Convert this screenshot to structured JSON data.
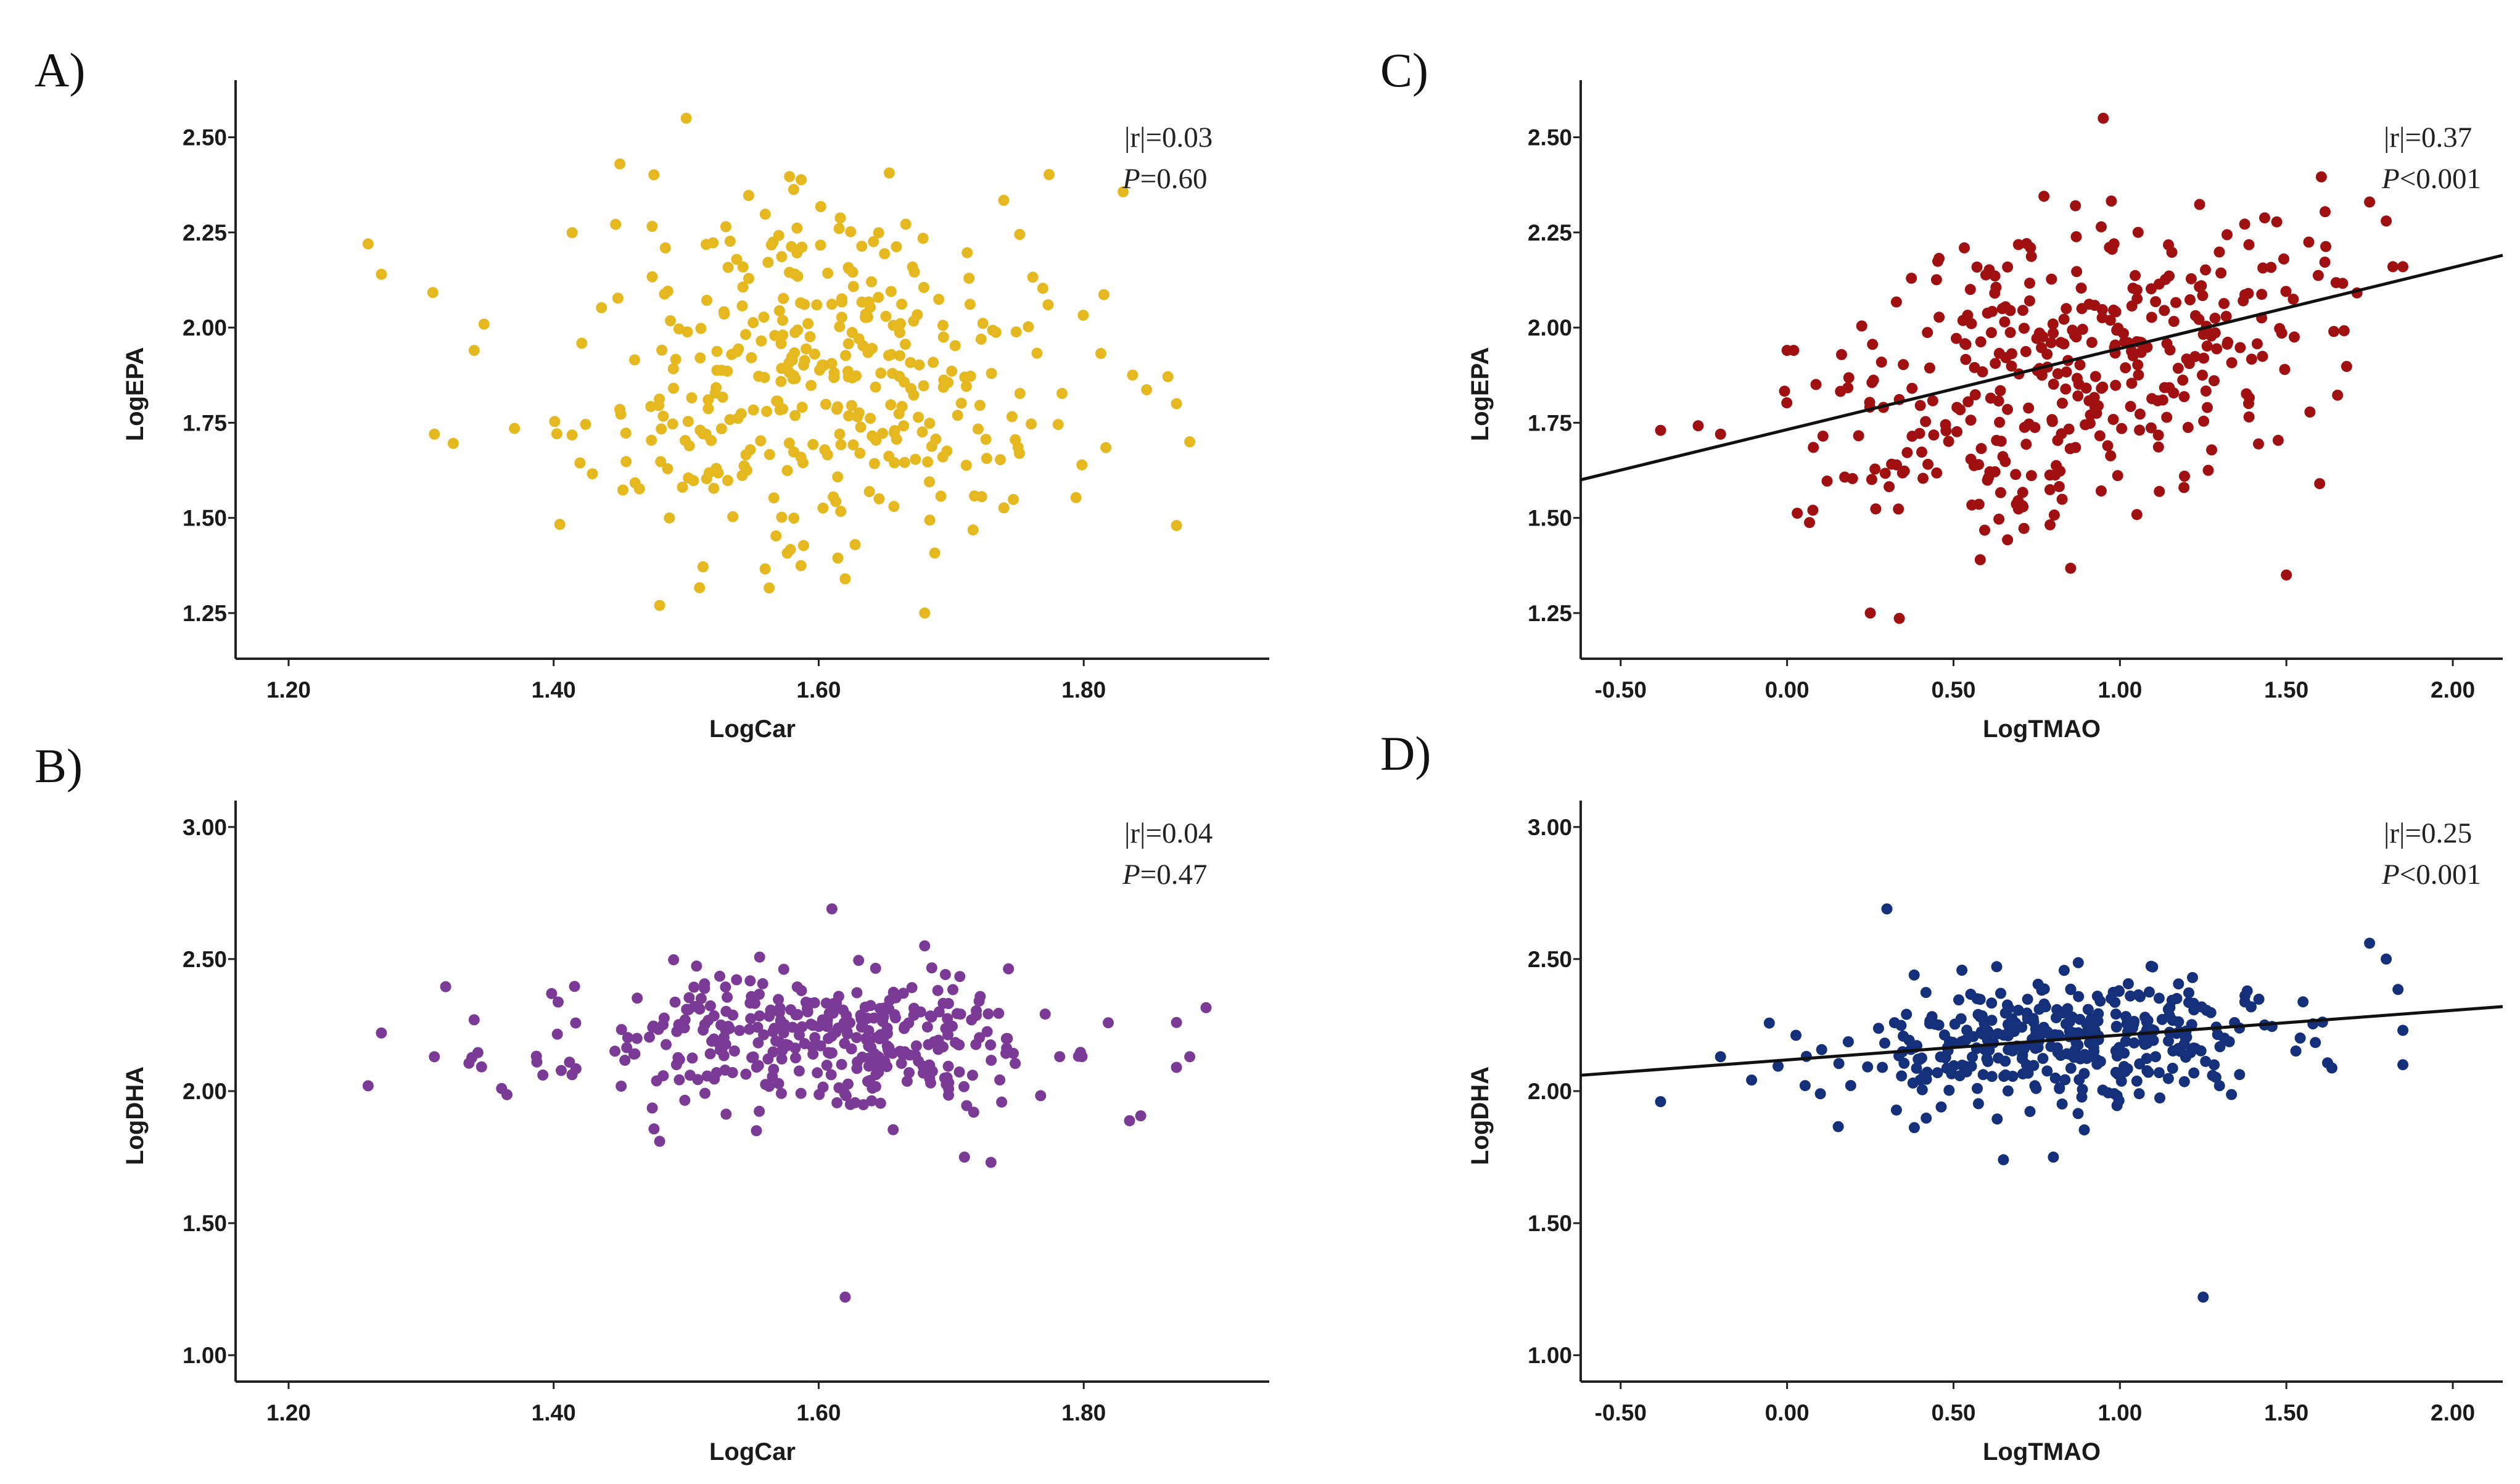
{
  "chart_data": [
    {
      "panel": "A)",
      "type": "scatter",
      "xlabel": "LogCar",
      "ylabel": "LogEPA",
      "xlim": [
        1.16,
        1.94
      ],
      "ylim": [
        1.13,
        2.65
      ],
      "xticks": [
        1.2,
        1.4,
        1.6,
        1.8
      ],
      "xtick_labels": [
        "1.20",
        "1.40",
        "1.60",
        "1.80"
      ],
      "yticks": [
        1.25,
        1.5,
        1.75,
        2.0,
        2.25,
        2.5
      ],
      "ytick_labels": [
        "1.25",
        "1.50",
        "1.75",
        "2.00",
        "2.25",
        "2.50"
      ],
      "stat_r": "|r|=0.03",
      "stat_p_italic": "P",
      "stat_p_value": "=0.60",
      "color": "#E6B820",
      "fit_line": null,
      "gen": {
        "n": 370,
        "cx": 1.61,
        "sx": 0.095,
        "cy": 1.9,
        "sy": 0.23,
        "slope": 0.0,
        "seed": 11,
        "ymin": 1.22,
        "ymax": 2.42
      },
      "fixed_points": [
        [
          1.26,
          2.22
        ],
        [
          1.27,
          2.14
        ],
        [
          1.31,
          1.72
        ],
        [
          1.34,
          1.94
        ],
        [
          1.5,
          2.55
        ],
        [
          1.68,
          1.25
        ],
        [
          1.87,
          1.48
        ],
        [
          1.88,
          1.7
        ],
        [
          1.87,
          1.8
        ],
        [
          1.62,
          1.34
        ],
        [
          1.48,
          1.27
        ],
        [
          1.45,
          2.43
        ]
      ]
    },
    {
      "panel": "B)",
      "type": "scatter",
      "xlabel": "LogCar",
      "ylabel": "LogDHA",
      "xlim": [
        1.16,
        1.94
      ],
      "ylim": [
        0.9,
        3.1
      ],
      "xticks": [
        1.2,
        1.4,
        1.6,
        1.8
      ],
      "xtick_labels": [
        "1.20",
        "1.40",
        "1.60",
        "1.80"
      ],
      "yticks": [
        1.0,
        1.5,
        2.0,
        2.5,
        3.0
      ],
      "ytick_labels": [
        "1.00",
        "1.50",
        "2.00",
        "2.50",
        "3.00"
      ],
      "stat_r": "|r|=0.04",
      "stat_p_italic": "P",
      "stat_p_value": "=0.47",
      "color": "#7B3A96",
      "fit_line": null,
      "gen": {
        "n": 370,
        "cx": 1.6,
        "sx": 0.095,
        "cy": 2.18,
        "sy": 0.13,
        "slope": 0.0,
        "seed": 23,
        "ymin": 1.85,
        "ymax": 2.52
      },
      "fixed_points": [
        [
          1.26,
          2.02
        ],
        [
          1.27,
          2.22
        ],
        [
          1.31,
          2.13
        ],
        [
          1.34,
          2.27
        ],
        [
          1.61,
          2.69
        ],
        [
          1.62,
          1.22
        ],
        [
          1.48,
          1.81
        ],
        [
          1.71,
          1.75
        ],
        [
          1.73,
          1.73
        ],
        [
          1.87,
          2.26
        ],
        [
          1.87,
          2.09
        ],
        [
          1.88,
          2.13
        ],
        [
          1.68,
          2.55
        ]
      ]
    },
    {
      "panel": "C)",
      "type": "scatter",
      "xlabel": "LogTMAO",
      "ylabel": "LogEPA",
      "xlim": [
        -0.62,
        2.15
      ],
      "ylim": [
        1.13,
        2.65
      ],
      "xticks": [
        -0.5,
        0.0,
        0.5,
        1.0,
        1.5,
        2.0
      ],
      "xtick_labels": [
        "-0.50",
        "0.00",
        "0.50",
        "1.00",
        "1.50",
        "2.00"
      ],
      "yticks": [
        1.25,
        1.5,
        1.75,
        2.0,
        2.25,
        2.5
      ],
      "ytick_labels": [
        "1.25",
        "1.50",
        "1.75",
        "2.00",
        "2.25",
        "2.50"
      ],
      "stat_r": "|r|=0.37",
      "stat_p_italic": "P",
      "stat_p_value": "<0.001",
      "color": "#A01010",
      "fit_line": {
        "x0": -0.62,
        "y0": 1.6,
        "x1": 2.15,
        "y1": 2.19
      },
      "gen": {
        "n": 370,
        "cx": 0.85,
        "sx": 0.36,
        "cy": 1.9,
        "sy": 0.19,
        "slope": 0.21,
        "seed": 37,
        "ymin": 1.22,
        "ymax": 2.45
      },
      "fixed_points": [
        [
          -0.38,
          1.73
        ],
        [
          -0.2,
          1.72
        ],
        [
          0.0,
          1.94
        ],
        [
          0.02,
          1.94
        ],
        [
          0.95,
          2.55
        ],
        [
          0.25,
          1.25
        ],
        [
          1.5,
          1.35
        ],
        [
          1.85,
          2.16
        ],
        [
          1.8,
          2.28
        ],
        [
          1.75,
          2.33
        ],
        [
          1.6,
          1.59
        ],
        [
          1.82,
          2.16
        ]
      ]
    },
    {
      "panel": "D)",
      "type": "scatter",
      "xlabel": "LogTMAO",
      "ylabel": "LogDHA",
      "xlim": [
        -0.62,
        2.15
      ],
      "ylim": [
        0.9,
        3.1
      ],
      "xticks": [
        -0.5,
        0.0,
        0.5,
        1.0,
        1.5,
        2.0
      ],
      "xtick_labels": [
        "-0.50",
        "0.00",
        "0.50",
        "1.00",
        "1.50",
        "2.00"
      ],
      "yticks": [
        1.0,
        1.5,
        2.0,
        2.5,
        3.0
      ],
      "ytick_labels": [
        "1.00",
        "1.50",
        "2.00",
        "2.50",
        "3.00"
      ],
      "stat_r": "|r|=0.25",
      "stat_p_italic": "P",
      "stat_p_value": "<0.001",
      "color": "#14307A",
      "fit_line": {
        "x0": -0.62,
        "y0": 2.06,
        "x1": 2.15,
        "y1": 2.32
      },
      "gen": {
        "n": 370,
        "cx": 0.85,
        "sx": 0.36,
        "cy": 2.19,
        "sy": 0.12,
        "slope": 0.09,
        "seed": 53,
        "ymin": 1.85,
        "ymax": 2.5
      },
      "fixed_points": [
        [
          -0.38,
          1.96
        ],
        [
          -0.2,
          2.13
        ],
        [
          0.3,
          2.69
        ],
        [
          1.25,
          1.22
        ],
        [
          0.65,
          1.74
        ],
        [
          0.8,
          1.75
        ],
        [
          1.75,
          2.56
        ],
        [
          1.8,
          2.5
        ],
        [
          1.85,
          2.1
        ],
        [
          1.85,
          2.23
        ],
        [
          0.1,
          1.99
        ]
      ]
    }
  ]
}
